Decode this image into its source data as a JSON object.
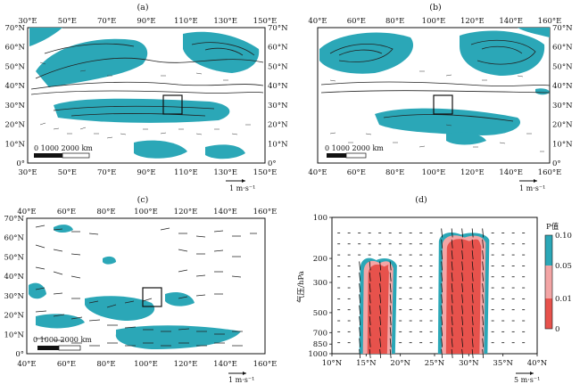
{
  "panels": [
    {
      "id": "a",
      "label": "(a)",
      "lon_ticks": [
        "30°E",
        "50°E",
        "70°E",
        "90°E",
        "110°E",
        "130°E",
        "150°E"
      ],
      "lat_ticks_left": [
        "70°N",
        "60°N",
        "50°N",
        "40°N",
        "30°N",
        "20°N",
        "10°N",
        "0°"
      ],
      "lat_ticks_right": [
        "70°N",
        "60°N",
        "50°N",
        "40°N",
        "30°N",
        "20°N",
        "10°N",
        "0°"
      ],
      "scale_text": "0  1000 2000 km",
      "ref_vector": "1 m·s⁻¹"
    },
    {
      "id": "b",
      "label": "(b)",
      "lon_ticks": [
        "40°E",
        "60°E",
        "80°E",
        "100°E",
        "120°E",
        "140°E",
        "160°E"
      ],
      "lat_ticks_left": [],
      "lat_ticks_right": [
        "70°N",
        "60°N",
        "50°N",
        "40°N",
        "30°N",
        "20°N",
        "10°N",
        "0°"
      ],
      "scale_text": "0  1000 2000 km",
      "ref_vector": "1 m·s⁻¹"
    },
    {
      "id": "c",
      "label": "(c)",
      "lon_ticks": [
        "40°E",
        "60°E",
        "80°E",
        "100°E",
        "120°E",
        "140°E",
        "160°E"
      ],
      "lat_ticks_left": [
        "70°N",
        "60°N",
        "50°N",
        "40°N",
        "30°N",
        "20°N",
        "10°N",
        "0°"
      ],
      "lat_ticks_right": [],
      "scale_text": "0  1000 2000 km",
      "ref_vector": "1 m·s⁻¹"
    }
  ],
  "chart_data": {
    "type": "heatmap",
    "label": "(d)",
    "ylabel": "气压/hPa",
    "x_ticks": [
      "10°N",
      "15°N",
      "20°N",
      "25°N",
      "30°N",
      "35°N",
      "40°N"
    ],
    "x_values": [
      10,
      15,
      20,
      25,
      30,
      35,
      40
    ],
    "y_ticks": [
      "100",
      "200",
      "300",
      "500",
      "700",
      "850",
      "1000"
    ],
    "y_values": [
      100,
      200,
      300,
      500,
      700,
      850,
      1000
    ],
    "xlim": [
      10,
      40
    ],
    "ylim": [
      1000,
      100
    ],
    "y_scale": "log",
    "ref_vector": "5 m·s⁻¹",
    "colorbar": {
      "title": "P值",
      "ticks": [
        "0.10",
        "0.05",
        "0.01",
        "0"
      ],
      "colors": [
        "#2aa7b6",
        "#f2a3a3",
        "#e8504a"
      ]
    },
    "regions": [
      {
        "lat_range": [
          14,
          19.5
        ],
        "p_range": [
          200,
          1000
        ],
        "level": "p<0.05"
      },
      {
        "lat_range": [
          25.5,
          33
        ],
        "p_range": [
          130,
          1000
        ],
        "level": "p<0.05"
      }
    ]
  },
  "colors": {
    "teal": "#2ba7b7",
    "pink": "#f3a5a5",
    "red": "#e7524c",
    "map_line": "#222222"
  }
}
